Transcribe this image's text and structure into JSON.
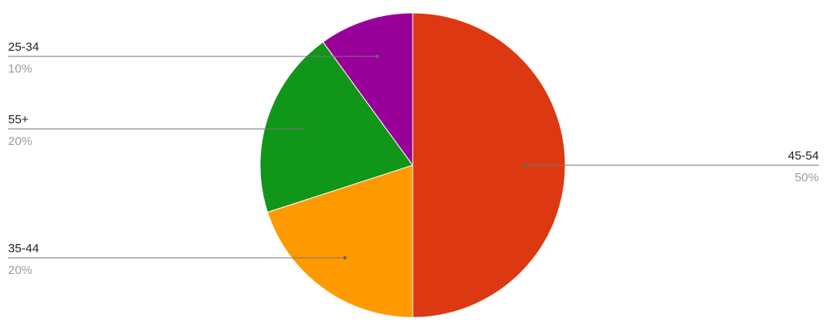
{
  "chart_data": {
    "type": "pie",
    "title": "",
    "start_angle_deg": 0,
    "direction": "clockwise",
    "slices": [
      {
        "label": "45-54",
        "value": 50,
        "percent_label": "50%",
        "color": "#dc3912"
      },
      {
        "label": "35-44",
        "value": 20,
        "percent_label": "20%",
        "color": "#ff9900"
      },
      {
        "label": "55+",
        "value": 20,
        "percent_label": "20%",
        "color": "#109618"
      },
      {
        "label": "25-34",
        "value": 10,
        "percent_label": "10%",
        "color": "#990099"
      }
    ],
    "legend": "labeled leader lines"
  }
}
